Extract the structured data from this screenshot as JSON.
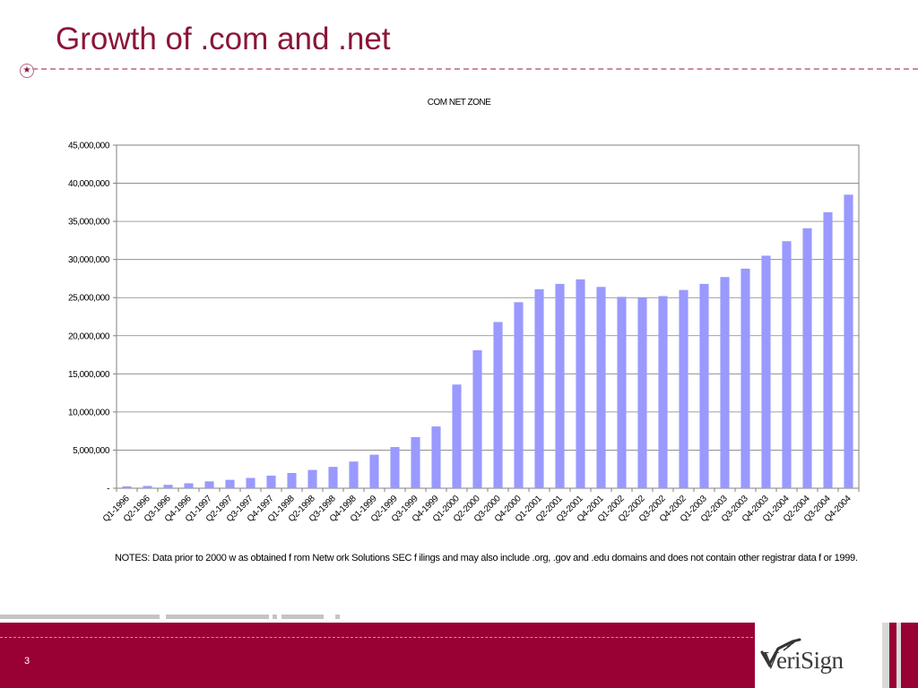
{
  "slide": {
    "title": "Growth of .com and .net",
    "notes": "NOTES: Data prior to 2000 w as obtained f rom Netw ork Solutions SEC f ilings and may also include .org, .gov and .edu domains and does not contain other registrar data f or 1999.",
    "page_number": "3",
    "logo_text": "VeriSign",
    "colors": {
      "title": "#8b1538",
      "footer": "#990033",
      "bar": "#9999ff"
    }
  },
  "chart_data": {
    "type": "bar",
    "title": "COM NET ZONE",
    "xlabel": "",
    "ylabel": "",
    "ylim": [
      0,
      45000000
    ],
    "yticks": [
      0,
      5000000,
      10000000,
      15000000,
      20000000,
      25000000,
      30000000,
      35000000,
      40000000,
      45000000
    ],
    "ytick_labels": [
      "-",
      "5,000,000",
      "10,000,000",
      "15,000,000",
      "20,000,000",
      "25,000,000",
      "30,000,000",
      "35,000,000",
      "40,000,000",
      "45,000,000"
    ],
    "grid": true,
    "legend": "none",
    "categories": [
      "Q1-1996",
      "Q2-1996",
      "Q3-1996",
      "Q4-1996",
      "Q1-1997",
      "Q2-1997",
      "Q3-1997",
      "Q4-1997",
      "Q1-1998",
      "Q2-1998",
      "Q3-1998",
      "Q4-1998",
      "Q1-1999",
      "Q2-1999",
      "Q3-1999",
      "Q4-1999",
      "Q1-2000",
      "Q2-2000",
      "Q3-2000",
      "Q4-2000",
      "Q1-2001",
      "Q2-2001",
      "Q3-2001",
      "Q4-2001",
      "Q1-2002",
      "Q2-2002",
      "Q3-2002",
      "Q4-2002",
      "Q1-2003",
      "Q2-2003",
      "Q3-2003",
      "Q4-2003",
      "Q1-2004",
      "Q2-2004",
      "Q3-2004",
      "Q4-2004"
    ],
    "values": [
      250000,
      300000,
      450000,
      650000,
      900000,
      1100000,
      1350000,
      1650000,
      2000000,
      2400000,
      2800000,
      3500000,
      4400000,
      5400000,
      6700000,
      8100000,
      13600000,
      18100000,
      21800000,
      24400000,
      26100000,
      26800000,
      27400000,
      26400000,
      25100000,
      25000000,
      25200000,
      26000000,
      26800000,
      27700000,
      28800000,
      30500000,
      32400000,
      34100000,
      36200000,
      38500000
    ]
  }
}
